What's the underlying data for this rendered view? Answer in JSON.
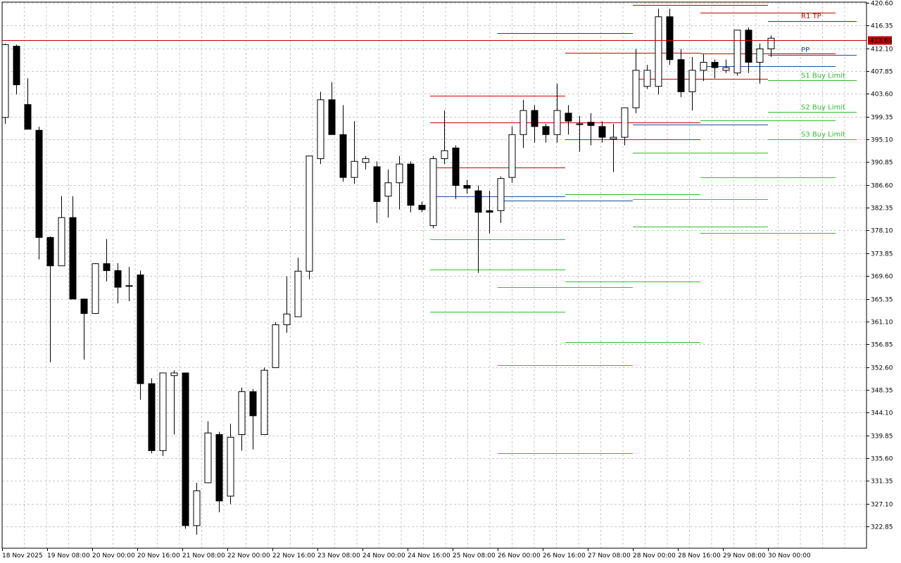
{
  "chart_data": {
    "type": "candlestick",
    "y_axis": {
      "position": "right",
      "range": [
        818.5,
        420.6
      ],
      "ticks": [
        "420.60",
        "416.35",
        "412.10",
        "407.85",
        "403.60",
        "399.35",
        "395.10",
        "390.85",
        "386.60",
        "382.35",
        "378.10",
        "373.85",
        "369.60",
        "365.35",
        "361.10",
        "356.85",
        "352.60",
        "348.35",
        "344.10",
        "339.85",
        "335.60",
        "331.35",
        "327.10",
        "322.85"
      ]
    },
    "x_axis": {
      "labels": [
        "18 Nov 2025",
        "19 Nov 08:00",
        "20 Nov 00:00",
        "20 Nov 16:00",
        "21 Nov 08:00",
        "22 Nov 00:00",
        "22 Nov 16:00",
        "23 Nov 08:00",
        "24 Nov 00:00",
        "24 Nov 16:00",
        "25 Nov 08:00",
        "26 Nov 00:00",
        "26 Nov 16:00",
        "27 Nov 08:00",
        "28 Nov 00:00",
        "28 Nov 16:00",
        "29 Nov 08:00",
        "30 Nov 00:00"
      ]
    },
    "grid": true,
    "current_price": {
      "value": 413.65,
      "label": "413.65",
      "color": "#c00000"
    },
    "candles": [
      {
        "o": 399.2,
        "h": 413.0,
        "l": 398.0,
        "c": 412.8
      },
      {
        "o": 412.5,
        "h": 412.8,
        "l": 403.5,
        "c": 405.3
      },
      {
        "o": 401.6,
        "h": 406.5,
        "l": 397.0,
        "c": 397.0
      },
      {
        "o": 396.8,
        "h": 397.5,
        "l": 372.7,
        "c": 376.8
      },
      {
        "o": 376.8,
        "h": 377.0,
        "l": 353.5,
        "c": 371.5
      },
      {
        "o": 371.5,
        "h": 384.5,
        "l": 371.5,
        "c": 380.5
      },
      {
        "o": 380.5,
        "h": 384.5,
        "l": 365.3,
        "c": 365.3
      },
      {
        "o": 365.3,
        "h": 365.3,
        "l": 354.0,
        "c": 362.6
      },
      {
        "o": 362.6,
        "h": 372.0,
        "l": 362.6,
        "c": 371.9
      },
      {
        "o": 371.9,
        "h": 376.5,
        "l": 368.6,
        "c": 370.6
      },
      {
        "o": 370.6,
        "h": 372.0,
        "l": 364.5,
        "c": 367.5
      },
      {
        "o": 367.8,
        "h": 371.3,
        "l": 364.9,
        "c": 367.8
      },
      {
        "o": 369.8,
        "h": 370.6,
        "l": 346.5,
        "c": 349.5
      },
      {
        "o": 349.5,
        "h": 350.5,
        "l": 336.5,
        "c": 337.0
      },
      {
        "o": 337.0,
        "h": 351.5,
        "l": 336.0,
        "c": 351.5
      },
      {
        "o": 351.0,
        "h": 352.0,
        "l": 340.0,
        "c": 351.5
      },
      {
        "o": 351.5,
        "h": 351.5,
        "l": 322.4,
        "c": 323.0
      },
      {
        "o": 323.0,
        "h": 331.0,
        "l": 321.3,
        "c": 329.5
      },
      {
        "o": 331.0,
        "h": 342.5,
        "l": 331.0,
        "c": 340.3
      },
      {
        "o": 340.0,
        "h": 340.5,
        "l": 325.5,
        "c": 327.6
      },
      {
        "o": 328.5,
        "h": 342.0,
        "l": 327.0,
        "c": 339.5
      },
      {
        "o": 340.0,
        "h": 348.8,
        "l": 337.0,
        "c": 348.0
      },
      {
        "o": 348.0,
        "h": 348.5,
        "l": 337.2,
        "c": 343.5
      },
      {
        "o": 340.0,
        "h": 352.5,
        "l": 340.0,
        "c": 352.0
      },
      {
        "o": 352.5,
        "h": 361.0,
        "l": 352.5,
        "c": 360.5
      },
      {
        "o": 360.5,
        "h": 369.5,
        "l": 359.0,
        "c": 362.5
      },
      {
        "o": 362.0,
        "h": 373.0,
        "l": 362.0,
        "c": 370.5
      },
      {
        "o": 370.5,
        "h": 392.0,
        "l": 369.0,
        "c": 392.0
      },
      {
        "o": 391.5,
        "h": 404.0,
        "l": 390.5,
        "c": 402.5
      },
      {
        "o": 402.5,
        "h": 405.8,
        "l": 396.0,
        "c": 396.0
      },
      {
        "o": 396.0,
        "h": 401.5,
        "l": 387.2,
        "c": 388.0
      },
      {
        "o": 388.0,
        "h": 398.5,
        "l": 386.8,
        "c": 391.0
      },
      {
        "o": 390.8,
        "h": 392.0,
        "l": 389.5,
        "c": 391.5
      },
      {
        "o": 390.0,
        "h": 391.0,
        "l": 379.5,
        "c": 383.5
      },
      {
        "o": 384.5,
        "h": 389.5,
        "l": 380.5,
        "c": 387.0
      },
      {
        "o": 387.0,
        "h": 392.0,
        "l": 382.0,
        "c": 390.5
      },
      {
        "o": 390.5,
        "h": 391.0,
        "l": 381.5,
        "c": 382.8
      },
      {
        "o": 382.8,
        "h": 383.5,
        "l": 381.5,
        "c": 382.0
      },
      {
        "o": 379.0,
        "h": 392.0,
        "l": 378.5,
        "c": 391.5
      },
      {
        "o": 391.5,
        "h": 400.5,
        "l": 390.5,
        "c": 393.0
      },
      {
        "o": 393.5,
        "h": 394.0,
        "l": 384.0,
        "c": 386.5
      },
      {
        "o": 386.5,
        "h": 387.5,
        "l": 385.0,
        "c": 386.0
      },
      {
        "o": 385.5,
        "h": 386.5,
        "l": 370.2,
        "c": 381.5
      },
      {
        "o": 381.8,
        "h": 385.5,
        "l": 377.5,
        "c": 381.5
      },
      {
        "o": 381.8,
        "h": 388.2,
        "l": 379.5,
        "c": 387.8
      },
      {
        "o": 388.0,
        "h": 397.5,
        "l": 387.0,
        "c": 396.0
      },
      {
        "o": 396.0,
        "h": 402.5,
        "l": 393.5,
        "c": 400.5
      },
      {
        "o": 400.5,
        "h": 401.5,
        "l": 394.5,
        "c": 397.5
      },
      {
        "o": 397.5,
        "h": 398.0,
        "l": 394.5,
        "c": 396.0
      },
      {
        "o": 396.0,
        "h": 405.5,
        "l": 394.5,
        "c": 400.5
      },
      {
        "o": 400.0,
        "h": 401.5,
        "l": 396.0,
        "c": 398.5
      },
      {
        "o": 398.0,
        "h": 399.5,
        "l": 392.8,
        "c": 398.0
      },
      {
        "o": 398.3,
        "h": 400.0,
        "l": 394.0,
        "c": 397.7
      },
      {
        "o": 397.5,
        "h": 398.5,
        "l": 394.5,
        "c": 395.5
      },
      {
        "o": 395.2,
        "h": 398.0,
        "l": 389.0,
        "c": 395.5
      },
      {
        "o": 395.5,
        "h": 401.0,
        "l": 394.0,
        "c": 401.0
      },
      {
        "o": 401.0,
        "h": 412.0,
        "l": 400.0,
        "c": 408.0
      },
      {
        "o": 405.0,
        "h": 409.0,
        "l": 404.5,
        "c": 408.0
      },
      {
        "o": 405.0,
        "h": 419.5,
        "l": 403.5,
        "c": 418.0
      },
      {
        "o": 418.0,
        "h": 419.5,
        "l": 409.0,
        "c": 410.0
      },
      {
        "o": 410.0,
        "h": 412.0,
        "l": 403.0,
        "c": 404.0
      },
      {
        "o": 404.0,
        "h": 410.5,
        "l": 400.5,
        "c": 408.0
      },
      {
        "o": 408.0,
        "h": 411.0,
        "l": 406.0,
        "c": 409.5
      },
      {
        "o": 409.5,
        "h": 410.0,
        "l": 406.5,
        "c": 408.5
      },
      {
        "o": 408.0,
        "h": 410.0,
        "l": 407.5,
        "c": 408.5
      },
      {
        "o": 407.5,
        "h": 413.0,
        "l": 407.0,
        "c": 415.5
      },
      {
        "o": 415.5,
        "h": 416.0,
        "l": 407.5,
        "c": 409.5
      },
      {
        "o": 409.5,
        "h": 413.0,
        "l": 405.5,
        "c": 412.0
      },
      {
        "o": 412.0,
        "h": 414.5,
        "l": 410.5,
        "c": 414.0
      }
    ],
    "level_labels": [
      {
        "text": "R1 TP",
        "value": 417.2,
        "color": "#cc0000"
      },
      {
        "text": "PP",
        "value": 410.9,
        "color": "#1f4e9e"
      },
      {
        "text": "S1 Buy Limit",
        "value": 406.1,
        "color": "#33bb33"
      },
      {
        "text": "S2 Buy Limit",
        "value": 400.2,
        "color": "#33bb33"
      },
      {
        "text": "S3 Buy Limit",
        "value": 395.1,
        "color": "#33bb33"
      }
    ],
    "pivot_sets": [
      {
        "start": 38,
        "end": 50,
        "levels": [
          {
            "value": 403.3,
            "color": "#cc0000"
          },
          {
            "value": 398.2,
            "color": "#cc0000"
          },
          {
            "value": 389.8,
            "color": "#cc0000"
          },
          {
            "value": 384.5,
            "color": "#1f4e9e"
          },
          {
            "value": 376.5,
            "color": "#33bb33"
          },
          {
            "value": 370.8,
            "color": "#33bb33"
          },
          {
            "value": 362.9,
            "color": "#33bb33"
          }
        ]
      },
      {
        "start": 44,
        "end": 56,
        "levels": [
          {
            "value": 415.0,
            "color": "#cc0000"
          },
          {
            "value": 383.7,
            "color": "#1f4e9e"
          },
          {
            "value": 367.5,
            "color": "#33bb33"
          },
          {
            "value": 353.0,
            "color": "#33bb33"
          },
          {
            "value": 336.5,
            "color": "#33bb33"
          }
        ]
      },
      {
        "start": 50,
        "end": 62,
        "levels": [
          {
            "value": 411.3,
            "color": "#cc0000"
          },
          {
            "value": 398.2,
            "color": "#cc0000"
          },
          {
            "value": 395.1,
            "color": "#1f4e9e"
          },
          {
            "value": 384.8,
            "color": "#33bb33"
          },
          {
            "value": 368.6,
            "color": "#33bb33"
          },
          {
            "value": 357.3,
            "color": "#33bb33"
          }
        ]
      },
      {
        "start": 56,
        "end": 68,
        "levels": [
          {
            "value": 420.2,
            "color": "#cc0000"
          },
          {
            "value": 406.4,
            "color": "#cc0000"
          },
          {
            "value": 397.9,
            "color": "#1f4e9e"
          },
          {
            "value": 392.6,
            "color": "#33bb33"
          },
          {
            "value": 384.0,
            "color": "#33bb33"
          },
          {
            "value": 378.8,
            "color": "#33bb33"
          }
        ]
      },
      {
        "start": 62,
        "end": 74,
        "levels": [
          {
            "value": 418.8,
            "color": "#cc0000"
          },
          {
            "value": 411.2,
            "color": "#cc0000"
          },
          {
            "value": 408.8,
            "color": "#1f4e9e"
          },
          {
            "value": 398.6,
            "color": "#33bb33"
          },
          {
            "value": 388.0,
            "color": "#33bb33"
          },
          {
            "value": 377.6,
            "color": "#33bb33"
          }
        ]
      },
      {
        "start": 68,
        "end": 80,
        "levels": [
          {
            "value": 417.2,
            "color": "#cc0000"
          },
          {
            "value": 410.9,
            "color": "#1f4e9e"
          },
          {
            "value": 406.1,
            "color": "#33bb33"
          },
          {
            "value": 400.2,
            "color": "#33bb33"
          },
          {
            "value": 395.1,
            "color": "#33bb33"
          }
        ]
      }
    ]
  }
}
